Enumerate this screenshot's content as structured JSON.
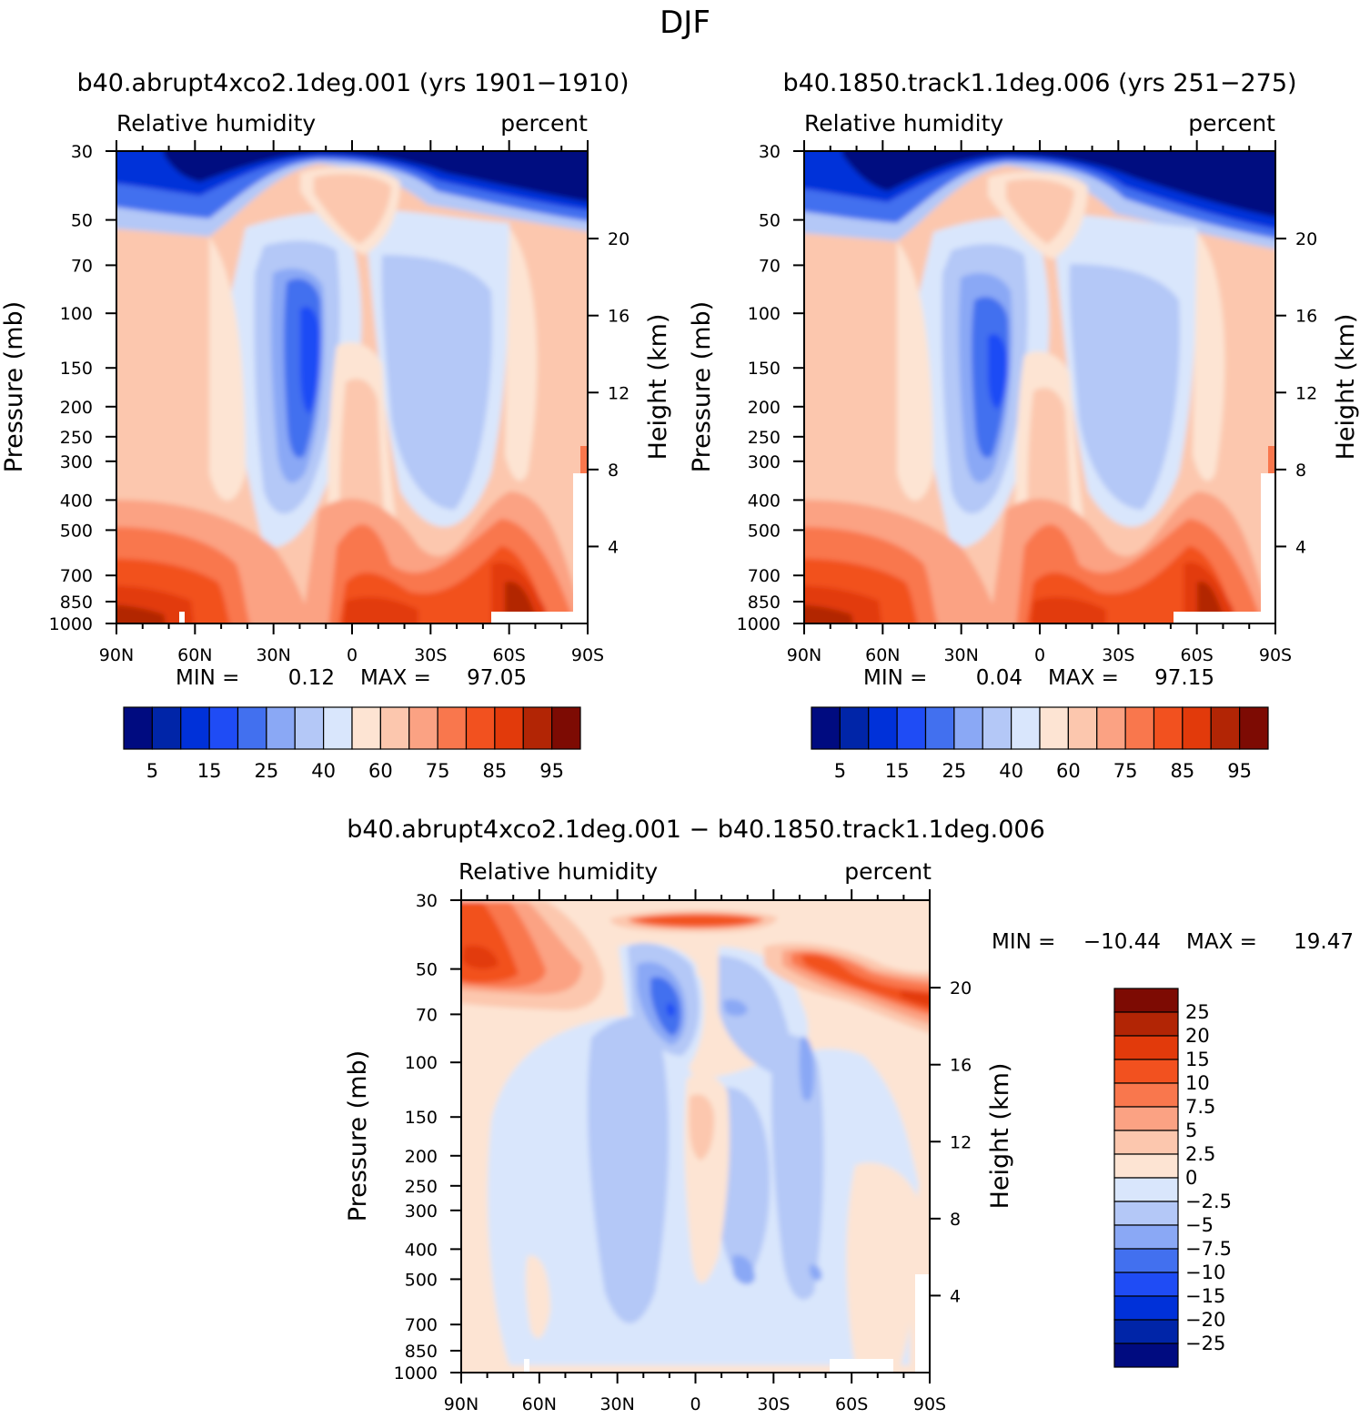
{
  "page_title": "DJF",
  "colors": {
    "rh_levels": [
      "#000b80",
      "#0025a8",
      "#0031d9",
      "#1f4cf5",
      "#4270ef",
      "#8aa8f5",
      "#b4c8f7",
      "#d9e6fc",
      "#fde4d3",
      "#fcc7ae",
      "#fba283",
      "#f9774d",
      "#f2511f",
      "#e23a0b",
      "#b22505",
      "#7d0b03"
    ],
    "diff_levels": [
      "#000b80",
      "#0025a8",
      "#0031d9",
      "#1f4cf5",
      "#4270ef",
      "#8aa8f5",
      "#b4c8f7",
      "#d9e6fc",
      "#fde4d3",
      "#fcc7ae",
      "#fba283",
      "#f9774d",
      "#f2511f",
      "#e23a0b",
      "#b22505",
      "#7d0b03"
    ]
  },
  "chart_data": [
    {
      "type": "heatmap",
      "title": "b40.abrupt4xco2.1deg.001 (yrs 1901-1910)",
      "left_subtitle": "Relative humidity",
      "right_subtitle": "percent",
      "xlabel": "",
      "ylabel": "Pressure (mb)",
      "y2label": "Height (km)",
      "x_ticks": [
        "90N",
        "60N",
        "30N",
        "0",
        "30S",
        "60S",
        "90S"
      ],
      "y_ticks": [
        "30",
        "50",
        "70",
        "100",
        "150",
        "200",
        "250",
        "300",
        "400",
        "500",
        "700",
        "850",
        "1000"
      ],
      "y_tick_values": [
        30,
        50,
        70,
        100,
        150,
        200,
        250,
        300,
        400,
        500,
        700,
        850,
        1000
      ],
      "y2_ticks": [
        "20",
        "16",
        "12",
        "8",
        "4"
      ],
      "y2_tick_values": [
        20,
        16,
        12,
        8,
        4
      ],
      "ylim": [
        1000,
        30
      ],
      "min_label": "MIN =",
      "min_value": "0.12",
      "max_label": "MAX =",
      "max_value": "97.05",
      "colorbar_labels": [
        "5",
        "15",
        "25",
        "40",
        "60",
        "75",
        "85",
        "95"
      ]
    },
    {
      "type": "heatmap",
      "title": "b40.1850.track1.1deg.006 (yrs 251-275)",
      "left_subtitle": "Relative humidity",
      "right_subtitle": "percent",
      "xlabel": "",
      "ylabel": "Pressure (mb)",
      "y2label": "Height (km)",
      "x_ticks": [
        "90N",
        "60N",
        "30N",
        "0",
        "30S",
        "60S",
        "90S"
      ],
      "y_ticks": [
        "30",
        "50",
        "70",
        "100",
        "150",
        "200",
        "250",
        "300",
        "400",
        "500",
        "700",
        "850",
        "1000"
      ],
      "y_tick_values": [
        30,
        50,
        70,
        100,
        150,
        200,
        250,
        300,
        400,
        500,
        700,
        850,
        1000
      ],
      "y2_ticks": [
        "20",
        "16",
        "12",
        "8",
        "4"
      ],
      "y2_tick_values": [
        20,
        16,
        12,
        8,
        4
      ],
      "ylim": [
        1000,
        30
      ],
      "min_label": "MIN =",
      "min_value": "0.04",
      "max_label": "MAX =",
      "max_value": "97.15",
      "colorbar_labels": [
        "5",
        "15",
        "25",
        "40",
        "60",
        "75",
        "85",
        "95"
      ]
    },
    {
      "type": "heatmap",
      "title": "b40.abrupt4xco2.1deg.001 - b40.1850.track1.1deg.006",
      "left_subtitle": "Relative humidity",
      "right_subtitle": "percent",
      "xlabel": "",
      "ylabel": "Pressure (mb)",
      "y2label": "Height (km)",
      "x_ticks": [
        "90N",
        "60N",
        "30N",
        "0",
        "30S",
        "60S",
        "90S"
      ],
      "y_ticks": [
        "30",
        "50",
        "70",
        "100",
        "150",
        "200",
        "250",
        "300",
        "400",
        "500",
        "700",
        "850",
        "1000"
      ],
      "y_tick_values": [
        30,
        50,
        70,
        100,
        150,
        200,
        250,
        300,
        400,
        500,
        700,
        850,
        1000
      ],
      "y2_ticks": [
        "20",
        "16",
        "12",
        "8",
        "4"
      ],
      "y2_tick_values": [
        20,
        16,
        12,
        8,
        4
      ],
      "ylim": [
        1000,
        30
      ],
      "min_label": "MIN =",
      "min_value": "-10.44",
      "max_label": "MAX =",
      "max_value": "19.47",
      "colorbar_labels": [
        "25",
        "20",
        "15",
        "10",
        "7.5",
        "5",
        "2.5",
        "0",
        "-2.5",
        "-5",
        "-7.5",
        "-10",
        "-15",
        "-20",
        "-25"
      ]
    }
  ]
}
